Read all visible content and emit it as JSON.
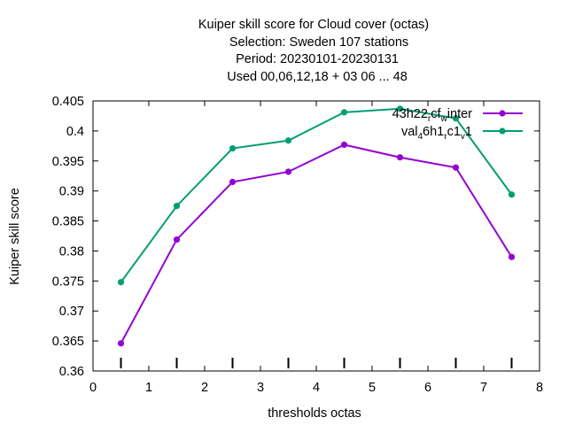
{
  "chart_data": {
    "type": "line",
    "title_lines": [
      "Kuiper skill score  for Cloud cover (octas)",
      "Selection: Sweden    107 stations",
      "Period: 20230101-20230131",
      "Used  00,06,12,18  + 03 06 ... 48"
    ],
    "xlabel": "thresholds octas",
    "ylabel": "Kuiper skill score",
    "xlim": [
      0,
      8
    ],
    "ylim": [
      0.36,
      0.405
    ],
    "xticks": [
      "0",
      "1",
      "2",
      "3",
      "4",
      "5",
      "6",
      "7",
      "8"
    ],
    "yticks": [
      "0.36",
      "0.365",
      "0.37",
      "0.375",
      "0.38",
      "0.385",
      "0.39",
      "0.395",
      "0.4",
      "0.405"
    ],
    "x": [
      0.5,
      1.5,
      2.5,
      3.5,
      4.5,
      5.5,
      6.5,
      7.5
    ],
    "grid": false,
    "legend_position": "top-right",
    "series": [
      {
        "legend": [
          "43h22",
          "r",
          "cf",
          "w",
          "inter"
        ],
        "color": "#9400d3",
        "values": [
          0.3646,
          0.3819,
          0.3915,
          0.3932,
          0.3977,
          0.3956,
          0.3939,
          0.379
        ]
      },
      {
        "legend": [
          "val",
          "4",
          "6h1",
          "r",
          "c1",
          "v",
          "1"
        ],
        "color": "#009e73",
        "values": [
          0.3748,
          0.3875,
          0.3971,
          0.3984,
          0.4031,
          0.4037,
          0.4021,
          0.3894
        ]
      }
    ]
  }
}
